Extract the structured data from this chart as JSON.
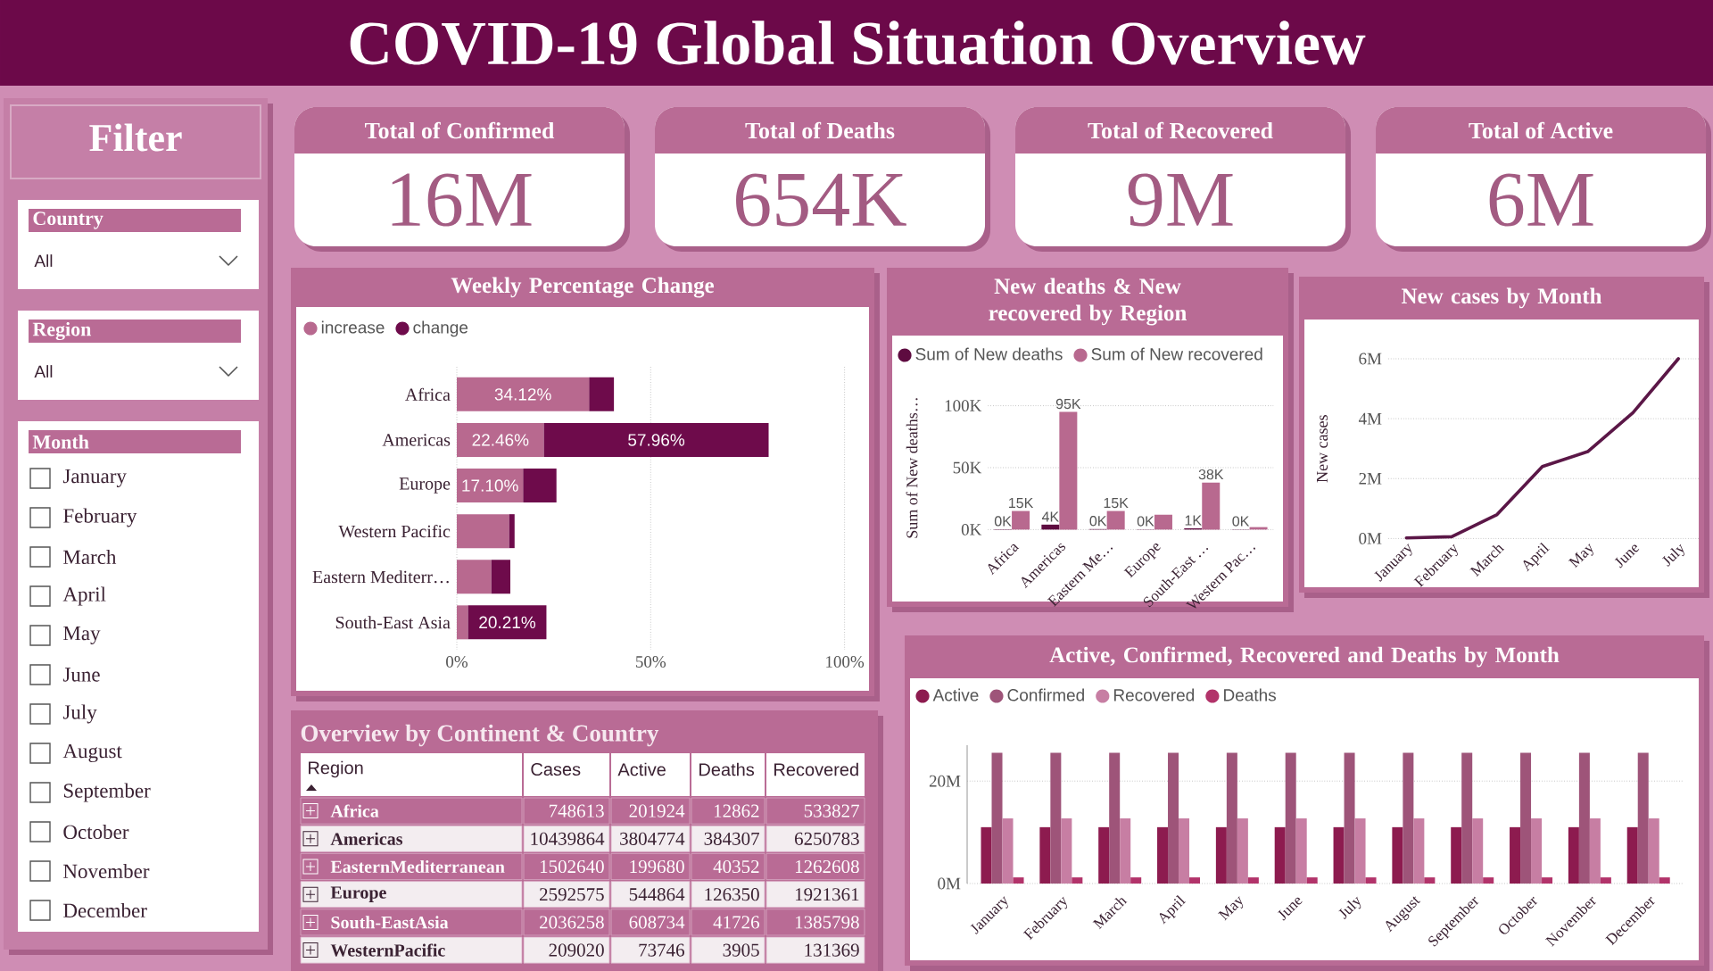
{
  "chart_data": [
    {
      "type": "other",
      "title": "COVID-19 Global Situation Overview",
      "categories": [
        "Total of Confirmed",
        "Total of Deaths",
        "Total of Recovered",
        "Total of Active"
      ],
      "annotations": [
        "16M",
        "654K",
        "9M",
        "6M"
      ]
    },
    {
      "type": "other",
      "title": "Filter",
      "annotations": [
        "Country",
        "All",
        "Region",
        "All",
        "Month",
        "January",
        "February",
        "March",
        "April",
        "May",
        "June",
        "July",
        "August",
        "September",
        "October",
        "November",
        "December"
      ]
    },
    {
      "type": "bar",
      "orientation": "horizontal",
      "stacked": true,
      "title": "Weekly Percentage Change",
      "categories": [
        "Africa",
        "Americas",
        "Europe",
        "Western Pacific",
        "Eastern Mediterr…",
        "South-East Asia"
      ],
      "series": [
        {
          "name": "increase",
          "color": "#b8698f",
          "values": [
            34.12,
            22.46,
            17.1,
            13.5,
            8.9,
            2.9
          ],
          "value_labels": [
            "34.12%",
            "22.46%",
            "17.10%",
            null,
            null,
            null
          ]
        },
        {
          "name": "change",
          "color": "#6e0b4b",
          "values": [
            6.4,
            57.96,
            8.6,
            1.4,
            4.9,
            20.21
          ],
          "value_labels": [
            null,
            "57.96%",
            null,
            null,
            null,
            "20.21%"
          ]
        }
      ],
      "xlim": [
        0,
        100
      ],
      "xticks": [
        {
          "value": 0,
          "label": "0%"
        },
        {
          "value": 50,
          "label": "50%"
        },
        {
          "value": 100,
          "label": "100%"
        }
      ],
      "grid": "x",
      "legend": "top left"
    },
    {
      "type": "bar",
      "title": "New deaths & New recovered by Region",
      "ylabel": "Sum of New deaths…",
      "categories": [
        "Africa",
        "Americas",
        "Eastern Me…",
        "Europe",
        "South-East …",
        "Western Pac…"
      ],
      "series": [
        {
          "name": "Sum of New deaths",
          "color": "#5e0b40",
          "values": [
            0.3,
            4,
            0.4,
            0.2,
            1,
            0.2
          ],
          "value_labels": [
            "0K",
            "4K",
            "0K",
            "0K",
            "1K",
            "0K"
          ]
        },
        {
          "name": "Sum of New recovered",
          "color": "#b8698f",
          "values": [
            15,
            95,
            15,
            12,
            38,
            2
          ],
          "value_labels": [
            "15K",
            "95K",
            "15K",
            null,
            "38K",
            null
          ]
        }
      ],
      "ylim": [
        0,
        100
      ],
      "yticks": [
        {
          "value": 0,
          "label": "0K"
        },
        {
          "value": 50,
          "label": "50K"
        },
        {
          "value": 100,
          "label": "100K"
        }
      ],
      "grid": "y",
      "legend": "top left"
    },
    {
      "type": "line",
      "title": "New cases by Month",
      "ylabel": "New cases",
      "categories": [
        "January",
        "February",
        "March",
        "April",
        "May",
        "June",
        "July"
      ],
      "series": [
        {
          "color": "#5b1747",
          "values": [
            0.02,
            0.06,
            0.8,
            2.4,
            2.9,
            4.2,
            6
          ]
        }
      ],
      "ylim": [
        0,
        6
      ],
      "yticks": [
        {
          "value": 0,
          "label": "0M"
        },
        {
          "value": 2,
          "label": "2M"
        },
        {
          "value": 4,
          "label": "4M"
        },
        {
          "value": 6,
          "label": "6M"
        }
      ],
      "grid": "y"
    },
    {
      "type": "other",
      "title": "Overview by Continent & Country",
      "ylabel": "Region",
      "categories": [
        "Africa",
        "Americas",
        "EasternMediterranean",
        "Europe",
        "South-EastAsia",
        "WesternPacific"
      ],
      "series": [
        {
          "name": "Cases",
          "colors": [
            "#b96b95",
            "#f3edf0",
            "#b96b95",
            "#f3edf0",
            "#b96b95",
            "#f3edf0"
          ],
          "values": [
            748613,
            10439864,
            1502640,
            2592575,
            2036258,
            209020
          ]
        },
        {
          "name": "Active",
          "colors": [
            "#b96b95",
            "#f3edf0",
            "#b96b95",
            "#f3edf0",
            "#b96b95",
            "#f3edf0"
          ],
          "values": [
            201924,
            3804774,
            199680,
            544864,
            608734,
            73746
          ]
        },
        {
          "name": "Deaths",
          "colors": [
            "#b96b95",
            "#f3edf0",
            "#b96b95",
            "#f3edf0",
            "#b96b95",
            "#f3edf0"
          ],
          "values": [
            12862,
            384307,
            40352,
            126350,
            41726,
            3905
          ]
        },
        {
          "name": "Recovered",
          "colors": [
            "#b96b95",
            "#f3edf0",
            "#b96b95",
            "#f3edf0",
            "#b96b95",
            "#f3edf0"
          ],
          "values": [
            533827,
            6250783,
            1262608,
            1921361,
            1385798,
            131369
          ]
        }
      ],
      "data_labels": true
    },
    {
      "type": "bar",
      "title": "Active, Confirmed, Recovered and Deaths by Month",
      "categories": [
        "January",
        "February",
        "March",
        "April",
        "May",
        "June",
        "July",
        "August",
        "September",
        "October",
        "November",
        "December"
      ],
      "series": [
        {
          "name": "Active",
          "color": "#8d1b4f",
          "values": [
            11,
            11,
            11,
            11,
            11,
            11,
            11,
            11,
            11,
            11,
            11,
            11
          ]
        },
        {
          "name": "Confirmed",
          "color": "#9e5479",
          "values": [
            25.5,
            25.5,
            25.5,
            25.5,
            25.5,
            25.5,
            25.5,
            25.5,
            25.5,
            25.5,
            25.5,
            25.5
          ]
        },
        {
          "name": "Recovered",
          "color": "#c77ea3",
          "values": [
            12.7,
            12.7,
            12.7,
            12.7,
            12.7,
            12.7,
            12.7,
            12.7,
            12.7,
            12.7,
            12.7,
            12.7
          ]
        },
        {
          "name": "Deaths",
          "color": "#b2336a",
          "values": [
            1.2,
            1.2,
            1.2,
            1.2,
            1.2,
            1.2,
            1.2,
            1.2,
            1.2,
            1.2,
            1.2,
            1.2
          ]
        }
      ],
      "ylim": [
        0,
        27
      ],
      "yticks": [
        {
          "value": 0,
          "label": "0M"
        },
        {
          "value": 20,
          "label": "20M"
        }
      ],
      "grid": "y",
      "legend": "top left"
    }
  ]
}
